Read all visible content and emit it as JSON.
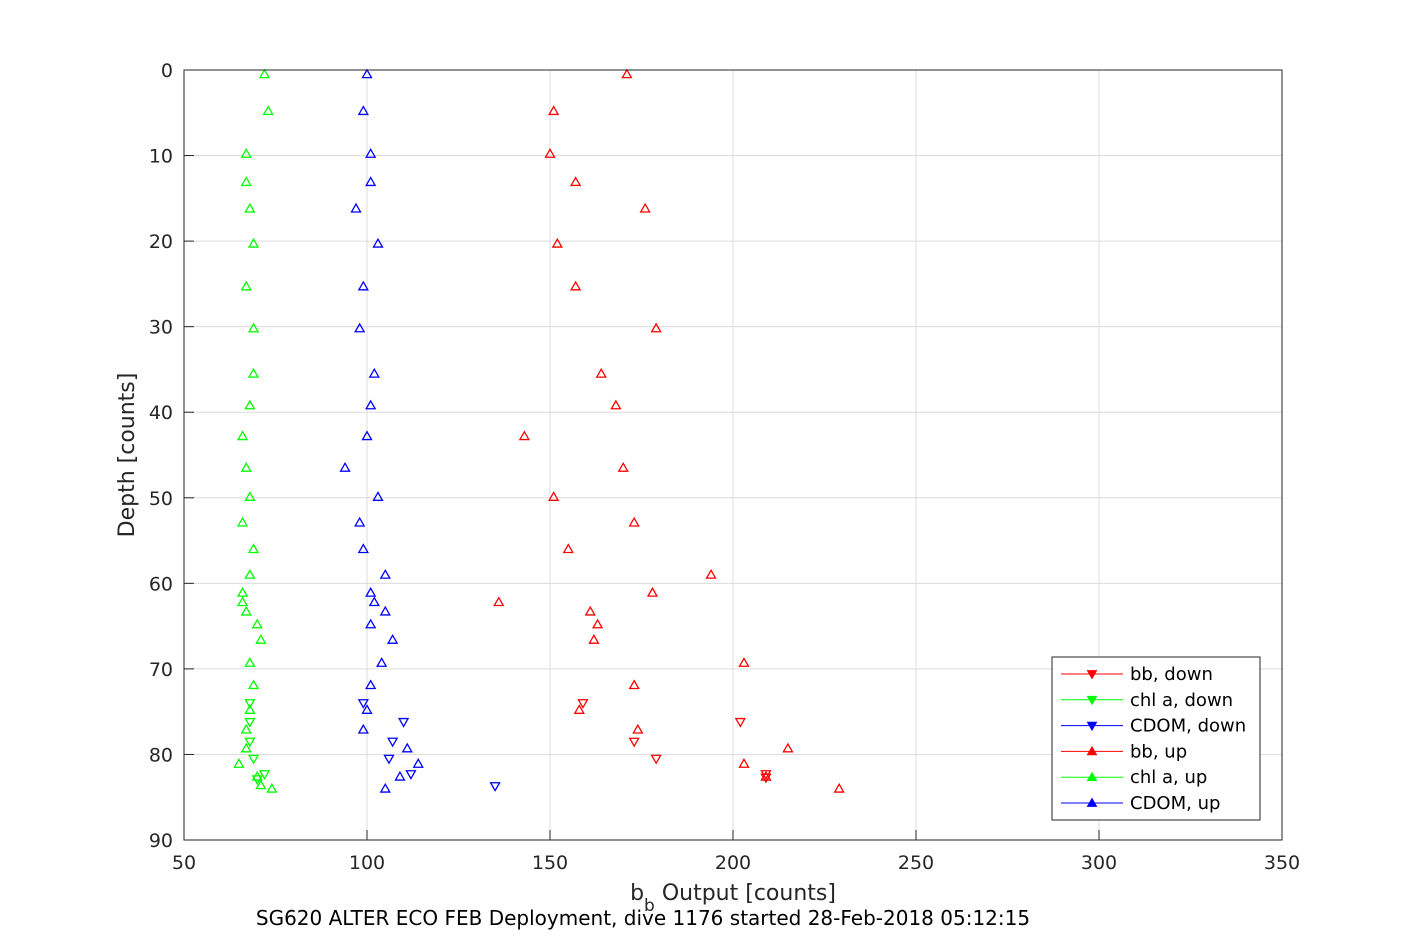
{
  "chart_data": {
    "type": "scatter",
    "xlabel_main": "b",
    "xlabel_sub": "b",
    "xlabel_rest": " Output [counts]",
    "ylabel": "Depth [counts]",
    "caption": "SG620 ALTER ECO FEB Deployment, dive 1176 started 28-Feb-2018 05:12:15",
    "xlim": [
      50,
      350
    ],
    "ylim": [
      0,
      90
    ],
    "y_reversed": true,
    "xticks": [
      50,
      100,
      150,
      200,
      250,
      300,
      350
    ],
    "yticks": [
      0,
      10,
      20,
      30,
      40,
      50,
      60,
      70,
      80,
      90
    ],
    "grid": true,
    "legend_location": "bottom-right",
    "series": [
      {
        "name": "bb, down",
        "color": "#ff0000",
        "marker": "triangle-down",
        "points": [
          [
            159,
            74
          ],
          [
            202,
            76.2
          ],
          [
            173,
            78.5
          ],
          [
            179,
            80.5
          ],
          [
            209,
            82.3
          ],
          [
            209,
            82.7
          ]
        ]
      },
      {
        "name": "chl a, down",
        "color": "#00ff00",
        "marker": "triangle-down",
        "points": [
          [
            68,
            74
          ],
          [
            68,
            76.2
          ],
          [
            68,
            78.5
          ],
          [
            69,
            80.5
          ],
          [
            72,
            82.3
          ],
          [
            70,
            82.9
          ]
        ]
      },
      {
        "name": "CDOM, down",
        "color": "#0000ff",
        "marker": "triangle-down",
        "points": [
          [
            99,
            74
          ],
          [
            110,
            76.2
          ],
          [
            107,
            78.5
          ],
          [
            106,
            80.5
          ],
          [
            112,
            82.3
          ],
          [
            135,
            83.7
          ]
        ]
      },
      {
        "name": "bb, up",
        "color": "#ff0000",
        "marker": "triangle-up",
        "points": [
          [
            171,
            0.5
          ],
          [
            151,
            4.8
          ],
          [
            150,
            9.8
          ],
          [
            157,
            13.1
          ],
          [
            176,
            16.2
          ],
          [
            152,
            20.3
          ],
          [
            157,
            25.3
          ],
          [
            179,
            30.2
          ],
          [
            164,
            35.5
          ],
          [
            168,
            39.2
          ],
          [
            143,
            42.8
          ],
          [
            170,
            46.5
          ],
          [
            151,
            49.9
          ],
          [
            173,
            52.9
          ],
          [
            155,
            56
          ],
          [
            194,
            59
          ],
          [
            178,
            61.1
          ],
          [
            136,
            62.2
          ],
          [
            161,
            63.3
          ],
          [
            163,
            64.8
          ],
          [
            162,
            66.6
          ],
          [
            203,
            69.3
          ],
          [
            173,
            71.9
          ],
          [
            158,
            74.8
          ],
          [
            174,
            77.1
          ],
          [
            215,
            79.3
          ],
          [
            203,
            81.1
          ],
          [
            209,
            82.6
          ],
          [
            229,
            84
          ]
        ]
      },
      {
        "name": "chl a, up",
        "color": "#00ff00",
        "marker": "triangle-up",
        "points": [
          [
            72,
            0.5
          ],
          [
            73,
            4.8
          ],
          [
            67,
            9.8
          ],
          [
            67,
            13.1
          ],
          [
            68,
            16.2
          ],
          [
            69,
            20.3
          ],
          [
            67,
            25.3
          ],
          [
            69,
            30.2
          ],
          [
            69,
            35.5
          ],
          [
            68,
            39.2
          ],
          [
            66,
            42.8
          ],
          [
            67,
            46.5
          ],
          [
            68,
            49.9
          ],
          [
            66,
            52.9
          ],
          [
            69,
            56
          ],
          [
            68,
            59
          ],
          [
            66,
            61.1
          ],
          [
            66,
            62.2
          ],
          [
            67,
            63.3
          ],
          [
            70,
            64.8
          ],
          [
            71,
            66.6
          ],
          [
            68,
            69.3
          ],
          [
            69,
            71.9
          ],
          [
            68,
            74.8
          ],
          [
            67,
            77.1
          ],
          [
            67,
            79.3
          ],
          [
            65,
            81.1
          ],
          [
            70,
            82.6
          ],
          [
            71,
            83.6
          ],
          [
            74,
            84
          ]
        ]
      },
      {
        "name": "CDOM, up",
        "color": "#0000ff",
        "marker": "triangle-up",
        "points": [
          [
            100,
            0.5
          ],
          [
            99,
            4.8
          ],
          [
            101,
            9.8
          ],
          [
            101,
            13.1
          ],
          [
            97,
            16.2
          ],
          [
            103,
            20.3
          ],
          [
            99,
            25.3
          ],
          [
            98,
            30.2
          ],
          [
            102,
            35.5
          ],
          [
            101,
            39.2
          ],
          [
            100,
            42.8
          ],
          [
            94,
            46.5
          ],
          [
            103,
            49.9
          ],
          [
            98,
            52.9
          ],
          [
            99,
            56
          ],
          [
            105,
            59
          ],
          [
            101,
            61.1
          ],
          [
            102,
            62.2
          ],
          [
            105,
            63.3
          ],
          [
            101,
            64.8
          ],
          [
            107,
            66.6
          ],
          [
            104,
            69.3
          ],
          [
            101,
            71.9
          ],
          [
            100,
            74.8
          ],
          [
            99,
            77.1
          ],
          [
            111,
            79.3
          ],
          [
            114,
            81.1
          ],
          [
            109,
            82.6
          ],
          [
            105,
            84
          ]
        ]
      }
    ]
  }
}
